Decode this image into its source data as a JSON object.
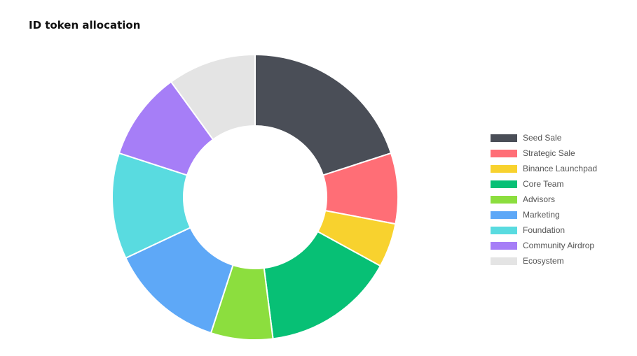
{
  "chart_data": {
    "type": "pie",
    "donut": true,
    "title": "ID token allocation",
    "legend_position": "right",
    "unit": "percent (estimated)",
    "slices": [
      {
        "name": "Seed Sale",
        "value": 20,
        "color": "#4a4e57"
      },
      {
        "name": "Strategic Sale",
        "value": 8,
        "color": "#ff6e76"
      },
      {
        "name": "Binance Launchpad",
        "value": 5,
        "color": "#f8d22e"
      },
      {
        "name": "Core Team",
        "value": 15,
        "color": "#07c075"
      },
      {
        "name": "Advisors",
        "value": 7,
        "color": "#8cde3e"
      },
      {
        "name": "Marketing",
        "value": 13,
        "color": "#5ea8f7"
      },
      {
        "name": "Foundation",
        "value": 12,
        "color": "#59dbe0"
      },
      {
        "name": "Community Airdrop",
        "value": 10,
        "color": "#a67ef7"
      },
      {
        "name": "Ecosystem",
        "value": 10,
        "color": "#e4e4e4"
      }
    ]
  }
}
